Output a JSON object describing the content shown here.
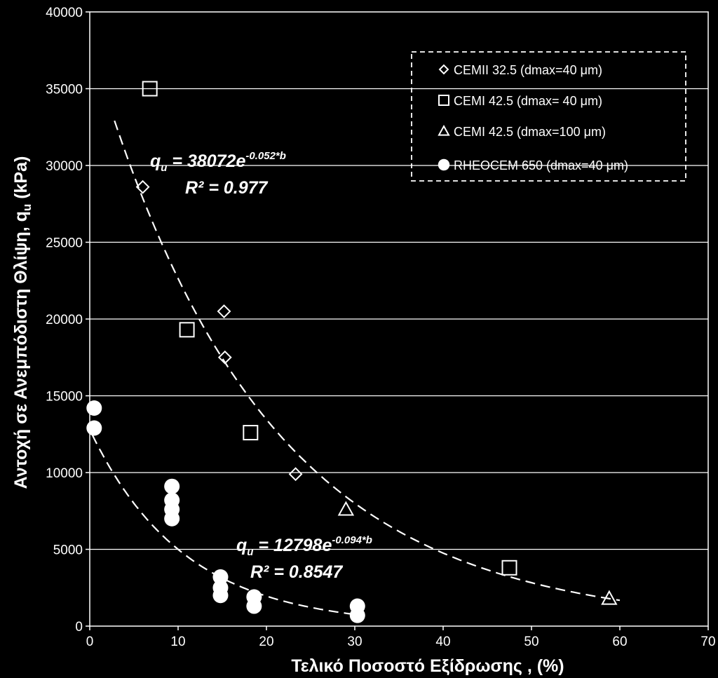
{
  "chart_data": {
    "type": "scatter",
    "xlabel": "Τελικό  Ποσοστό  Εξίδρωσης , (%)",
    "ylabel": "Αντοχή  σε  Ανεμπόδιστη  Θλίψη,  q",
    "ylabel_sub": "u",
    "ylabel_unit": " (kPa)",
    "xlim": [
      0,
      70
    ],
    "ylim": [
      0,
      40000
    ],
    "xticks": [
      "0",
      "10",
      "20",
      "30",
      "40",
      "50",
      "60",
      "70"
    ],
    "yticks": [
      "0",
      "5000",
      "10000",
      "15000",
      "20000",
      "25000",
      "30000",
      "35000",
      "40000"
    ],
    "grid": "horizontal",
    "legend_position": "top-right",
    "series": [
      {
        "name": "CEMII 32.5 (dmax=40 μm)",
        "marker": "diamond",
        "points": [
          [
            6,
            28600
          ],
          [
            15.2,
            20500
          ],
          [
            15.3,
            17500
          ],
          [
            23.3,
            9900
          ]
        ]
      },
      {
        "name": "CEMI 42.5 (dmax= 40 μm)",
        "marker": "square",
        "points": [
          [
            6.8,
            35000
          ],
          [
            11,
            19300
          ],
          [
            18.2,
            12600
          ],
          [
            47.5,
            3800
          ]
        ]
      },
      {
        "name": "CEMI 42.5 (dmax=100 μm)",
        "marker": "triangle",
        "points": [
          [
            29,
            7600
          ],
          [
            58.8,
            1800
          ]
        ]
      },
      {
        "name": "RHEOCEM 650 (dmax=40 μm)",
        "marker": "circle",
        "points": [
          [
            0.5,
            14200
          ],
          [
            0.5,
            12900
          ],
          [
            9.3,
            9100
          ],
          [
            9.3,
            8200
          ],
          [
            9.3,
            7600
          ],
          [
            9.3,
            7000
          ],
          [
            14.8,
            3200
          ],
          [
            14.8,
            2500
          ],
          [
            14.8,
            2000
          ],
          [
            18.6,
            1900
          ],
          [
            18.6,
            1300
          ],
          [
            30.3,
            1300
          ],
          [
            30.3,
            700
          ]
        ]
      }
    ],
    "trendlines": [
      {
        "a": 38072,
        "b": 0.052,
        "x_range": [
          2.8,
          60
        ],
        "equation_main": "q",
        "equation_sub": "u",
        "equation_rest": " = 38072e",
        "equation_sup": "-0.052*b",
        "r2": "R² = 0.977"
      },
      {
        "a": 12798,
        "b": 0.094,
        "x_range": [
          0.3,
          30
        ],
        "equation_main": "q",
        "equation_sub": "u",
        "equation_rest": " = 12798e",
        "equation_sup": "-0.094*b",
        "r2": "R² = 0.8547"
      }
    ]
  }
}
